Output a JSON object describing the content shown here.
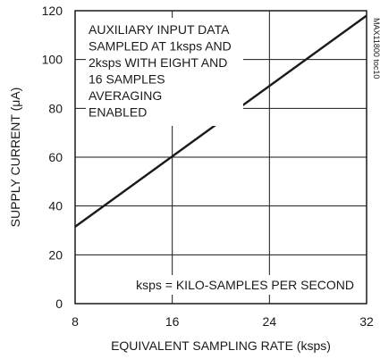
{
  "chart_data": {
    "type": "line",
    "title": "",
    "xlabel": "EQUIVALENT SAMPLING RATE (ksps)",
    "ylabel": "SUPPLY CURRENT (μA)",
    "xlim": [
      8,
      32
    ],
    "ylim": [
      0,
      120
    ],
    "x_ticks": [
      8,
      16,
      24,
      32
    ],
    "y_ticks": [
      0,
      20,
      40,
      60,
      80,
      100,
      120
    ],
    "x_tick_labels": [
      "8",
      "16",
      "24",
      "32"
    ],
    "y_tick_labels": [
      "0",
      "20",
      "40",
      "60",
      "80",
      "100",
      "120"
    ],
    "grid": true,
    "series": [
      {
        "x": [
          8,
          32
        ],
        "y": [
          31.5,
          118
        ]
      }
    ],
    "annotations": [
      {
        "lines": [
          "AUXILIARY INPUT DATA",
          "SAMPLED AT 1ksps AND",
          "2ksps WITH EIGHT AND",
          "16 SAMPLES",
          "AVERAGING",
          "ENABLED"
        ],
        "placement": "top-left"
      },
      {
        "lines": [
          "ksps = KILO-SAMPLES PER SECOND"
        ],
        "placement": "bottom-right"
      }
    ],
    "watermark": "MAX11800 toc10"
  }
}
